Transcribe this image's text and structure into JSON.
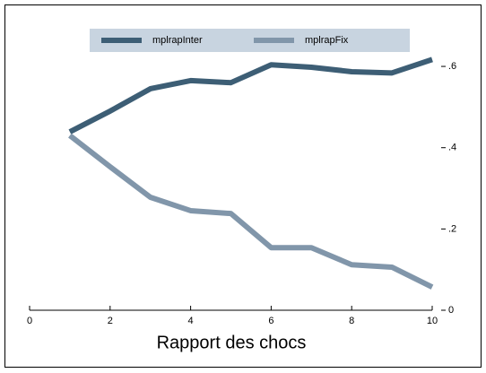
{
  "chart_data": {
    "type": "line",
    "x_label": "Rapport des chocs",
    "x": [
      1,
      2,
      3,
      4,
      5,
      6,
      7,
      8,
      9,
      10
    ],
    "series": [
      {
        "name": "mplrapInter",
        "color": "#3d5e75",
        "values": [
          0.439,
          0.49,
          0.545,
          0.565,
          0.56,
          0.604,
          0.598,
          0.587,
          0.584,
          0.617
        ]
      },
      {
        "name": "mplrapFix",
        "color": "#8196aa",
        "values": [
          0.43,
          0.353,
          0.278,
          0.245,
          0.238,
          0.154,
          0.154,
          0.112,
          0.106,
          0.057
        ]
      }
    ],
    "xlim": [
      0,
      10
    ],
    "xticks": [
      0,
      2,
      4,
      6,
      8,
      10
    ],
    "ylim": [
      0,
      0.62
    ],
    "yticks": [
      0,
      {
        "value": 0.2,
        "label": ".2"
      },
      {
        "value": 0.4,
        "label": ".4"
      },
      {
        "value": 0.6,
        "label": ".6"
      }
    ]
  }
}
